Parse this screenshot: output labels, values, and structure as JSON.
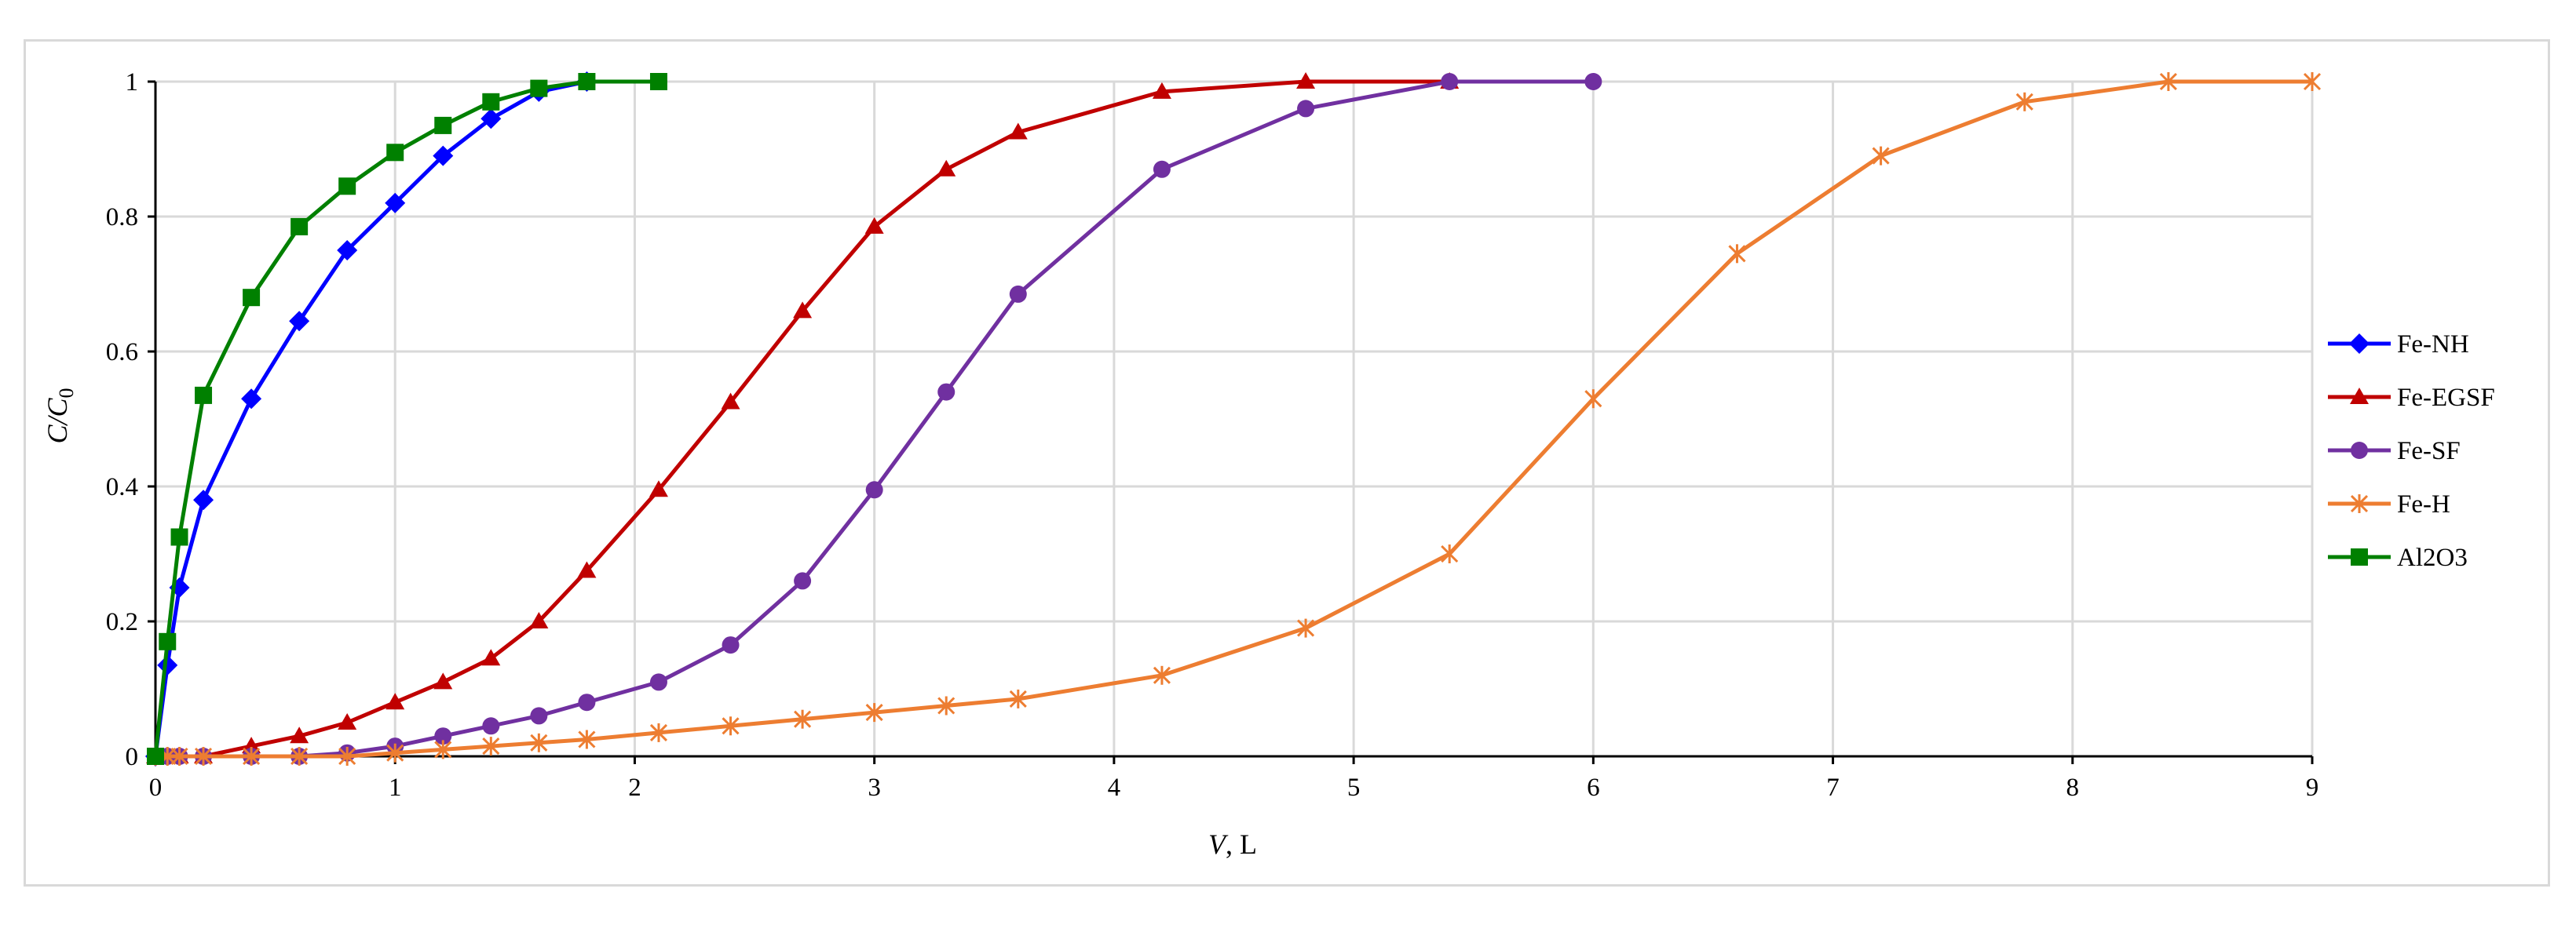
{
  "chart_data": {
    "type": "line",
    "title": "",
    "xlabel": {
      "italic": "V",
      "rest": ", L"
    },
    "ylabel": {
      "italic": "C/C",
      "sub": "0"
    },
    "xlim": [
      0,
      9
    ],
    "ylim": [
      0,
      1
    ],
    "x_ticks": [
      "0",
      "1",
      "2",
      "3",
      "4",
      "5",
      "6",
      "7",
      "8",
      "9"
    ],
    "y_ticks": [
      "0",
      "0.2",
      "0.4",
      "0.6",
      "0.8",
      "1"
    ],
    "grid": true,
    "legend_position": "right",
    "series": [
      {
        "name": "Fe-NH",
        "color": "#0000ff",
        "marker": "diamond",
        "x": [
          0,
          0.05,
          0.1,
          0.2,
          0.4,
          0.6,
          0.8,
          1.0,
          1.2,
          1.4,
          1.6,
          1.8
        ],
        "y": [
          0,
          0.135,
          0.25,
          0.38,
          0.53,
          0.645,
          0.75,
          0.82,
          0.89,
          0.945,
          0.985,
          1.0
        ]
      },
      {
        "name": "Fe-EGSF",
        "color": "#c00000",
        "marker": "triangle",
        "x": [
          0,
          0.05,
          0.1,
          0.2,
          0.4,
          0.6,
          0.8,
          1.0,
          1.2,
          1.4,
          1.6,
          1.8,
          2.1,
          2.4,
          2.7,
          3.0,
          3.3,
          3.6,
          4.2,
          4.8,
          5.4
        ],
        "y": [
          0,
          0,
          0,
          0,
          0.015,
          0.03,
          0.05,
          0.08,
          0.11,
          0.145,
          0.2,
          0.275,
          0.395,
          0.525,
          0.66,
          0.785,
          0.87,
          0.925,
          0.985,
          1.0,
          1.0
        ]
      },
      {
        "name": "Fe-SF",
        "color": "#7030a0",
        "marker": "circle",
        "x": [
          0,
          0.05,
          0.1,
          0.2,
          0.4,
          0.6,
          0.8,
          1.0,
          1.2,
          1.4,
          1.6,
          1.8,
          2.1,
          2.4,
          2.7,
          3.0,
          3.3,
          3.6,
          4.2,
          4.8,
          5.4,
          6.0
        ],
        "y": [
          0,
          0,
          0,
          0,
          0,
          0,
          0.005,
          0.015,
          0.03,
          0.045,
          0.06,
          0.08,
          0.11,
          0.165,
          0.26,
          0.395,
          0.54,
          0.685,
          0.87,
          0.96,
          1.0,
          1.0
        ]
      },
      {
        "name": "Fe-H",
        "color": "#ed7d31",
        "marker": "star",
        "x": [
          0,
          0.05,
          0.1,
          0.2,
          0.4,
          0.6,
          0.8,
          1.0,
          1.2,
          1.4,
          1.6,
          1.8,
          2.1,
          2.4,
          2.7,
          3.0,
          3.3,
          3.6,
          4.2,
          4.8,
          5.4,
          6.0,
          6.6,
          7.2,
          7.8,
          8.4,
          9.0
        ],
        "y": [
          0,
          0,
          0,
          0,
          0,
          0,
          0,
          0.005,
          0.01,
          0.015,
          0.02,
          0.025,
          0.035,
          0.045,
          0.055,
          0.065,
          0.075,
          0.085,
          0.12,
          0.19,
          0.3,
          0.53,
          0.745,
          0.89,
          0.97,
          1.0,
          1.0
        ]
      },
      {
        "name": "Al2O3",
        "color": "#008000",
        "marker": "square",
        "x": [
          0,
          0.05,
          0.1,
          0.2,
          0.4,
          0.6,
          0.8,
          1.0,
          1.2,
          1.4,
          1.6,
          1.8,
          2.1
        ],
        "y": [
          0,
          0.17,
          0.325,
          0.535,
          0.68,
          0.785,
          0.845,
          0.895,
          0.935,
          0.97,
          0.99,
          1.0,
          1.0
        ]
      }
    ]
  }
}
